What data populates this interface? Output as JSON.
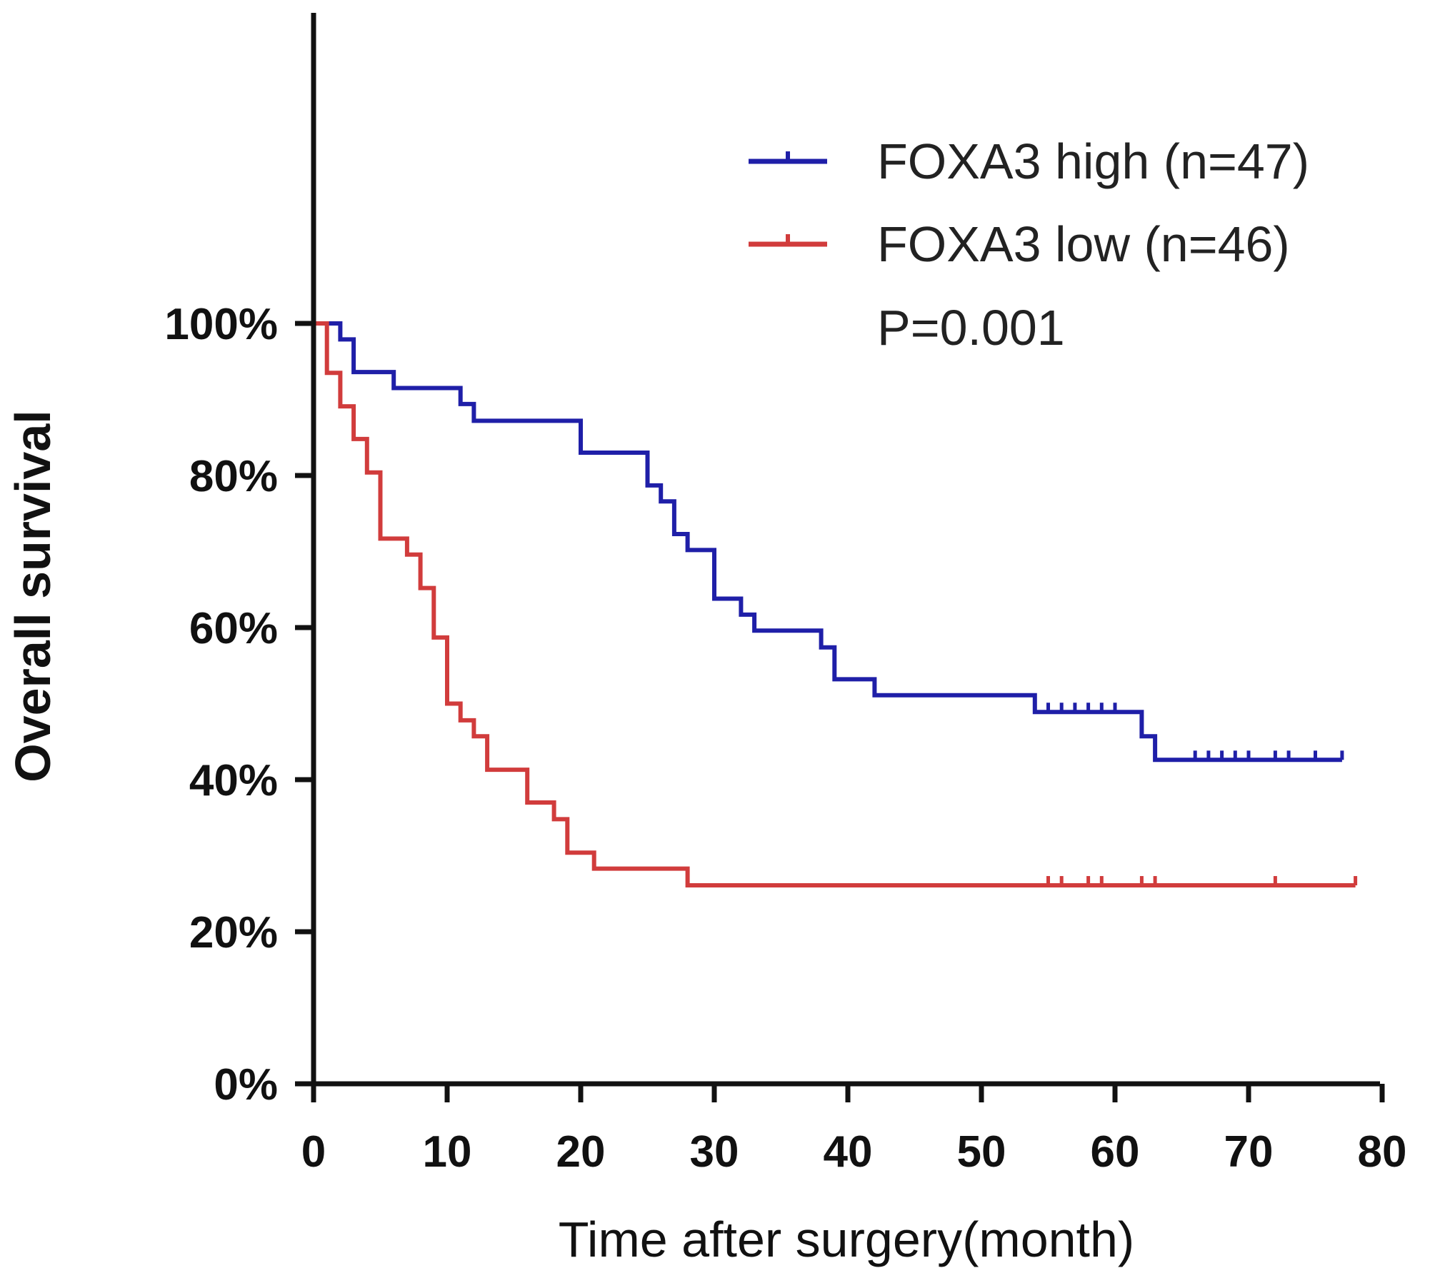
{
  "chart_data": {
    "type": "line",
    "subtype": "kaplan-meier",
    "xlabel": "Time after surgery(month)",
    "ylabel": "Overall survival",
    "xlim": [
      0,
      80
    ],
    "ylim": [
      0,
      110
    ],
    "x_ticks": [
      0,
      10,
      20,
      30,
      40,
      50,
      60,
      70,
      80
    ],
    "x_tick_labels": [
      "0",
      "10",
      "20",
      "30",
      "40",
      "50",
      "60",
      "70",
      "80"
    ],
    "y_ticks": [
      0,
      20,
      40,
      60,
      80,
      100
    ],
    "y_tick_labels": [
      "0%",
      "20%",
      "40%",
      "60%",
      "80%",
      "100%"
    ],
    "grid": false,
    "legend_position": "top-right",
    "annotation": "P=0.001",
    "series": [
      {
        "name": "FOXA3 high (n=47)",
        "color": "#1f1fa8",
        "steps": [
          [
            0,
            100
          ],
          [
            2,
            97.9
          ],
          [
            3,
            93.6
          ],
          [
            6,
            91.5
          ],
          [
            11,
            89.4
          ],
          [
            12,
            87.2
          ],
          [
            20,
            83.0
          ],
          [
            25,
            78.7
          ],
          [
            26,
            76.6
          ],
          [
            27,
            72.3
          ],
          [
            28,
            70.2
          ],
          [
            30,
            63.8
          ],
          [
            32,
            61.7
          ],
          [
            33,
            59.6
          ],
          [
            38,
            57.4
          ],
          [
            39,
            53.2
          ],
          [
            42,
            51.1
          ],
          [
            54,
            48.9
          ],
          [
            62,
            45.7
          ],
          [
            63,
            42.6
          ],
          [
            77,
            42.6
          ]
        ],
        "censored": [
          55,
          56,
          57,
          58,
          59,
          60,
          66,
          67,
          68,
          69,
          70,
          72,
          73,
          75,
          77
        ]
      },
      {
        "name": "FOXA3 low (n=46)",
        "color": "#d13c3c",
        "steps": [
          [
            0,
            100
          ],
          [
            1,
            93.5
          ],
          [
            2,
            89.1
          ],
          [
            3,
            84.8
          ],
          [
            4,
            80.4
          ],
          [
            5,
            71.7
          ],
          [
            7,
            69.6
          ],
          [
            8,
            65.2
          ],
          [
            9,
            58.7
          ],
          [
            10,
            50.0
          ],
          [
            11,
            47.8
          ],
          [
            12,
            45.7
          ],
          [
            13,
            41.3
          ],
          [
            16,
            37.0
          ],
          [
            18,
            34.8
          ],
          [
            19,
            30.4
          ],
          [
            21,
            28.3
          ],
          [
            28,
            26.1
          ],
          [
            78,
            26.1
          ]
        ],
        "censored": [
          55,
          56,
          58,
          59,
          62,
          63,
          72,
          78
        ]
      }
    ]
  }
}
